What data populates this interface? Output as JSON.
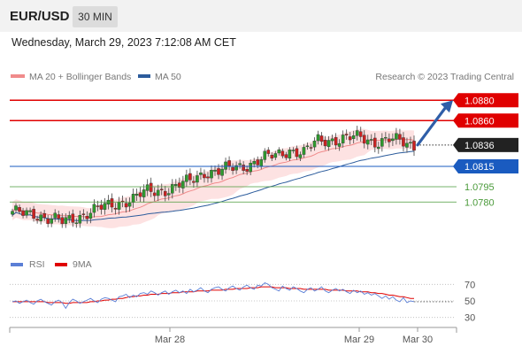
{
  "header": {
    "pair": "EUR/USD",
    "timeframe": "30 MIN",
    "timestamp": "Wednesday, March 29, 2023 7:12:08 AM CET"
  },
  "legend": {
    "ma20": "MA 20 + Bollinger Bands",
    "ma50": "MA 50",
    "credit": "Research © 2023 Trading Central",
    "rsi": "RSI",
    "ma9": "9MA"
  },
  "colors": {
    "ma20": "#f08b8b",
    "band": "#fde2e2",
    "ma50": "#2c5c9c",
    "resistance": "#e00000",
    "support": "#1a5bc0",
    "minor_support": "#4a9a3a",
    "candle_up": "#2e9a2e",
    "candle_down": "#cc2222",
    "current_bg": "#222222",
    "arrow": "#2f5ea8",
    "rsi": "#5b7fd6",
    "rsi_ma": "#e00000"
  },
  "chart_data": [
    {
      "type": "candlestick",
      "instrument": "EUR/USD",
      "timeframe": "30 MIN",
      "x_labels": [
        "Mar 28",
        "Mar 29",
        "Mar 30"
      ],
      "ylim": [
        1.0735,
        1.0895
      ],
      "current_price": "1.0836",
      "levels": [
        {
          "label": "1.0880",
          "value": 1.088,
          "kind": "resistance"
        },
        {
          "label": "1.0860",
          "value": 1.086,
          "kind": "resistance"
        },
        {
          "label": "1.0815",
          "value": 1.0815,
          "kind": "support"
        },
        {
          "label": "1.0795",
          "value": 1.0795,
          "kind": "minor_support"
        },
        {
          "label": "1.0780",
          "value": 1.078,
          "kind": "minor_support"
        }
      ],
      "target_arrow": {
        "from": 1.0836,
        "to": 1.088
      },
      "anchors": [
        {
          "i": 0,
          "p": 1.0768
        },
        {
          "i": 6,
          "p": 1.077
        },
        {
          "i": 10,
          "p": 1.0763
        },
        {
          "i": 14,
          "p": 1.076
        },
        {
          "i": 18,
          "p": 1.0766
        },
        {
          "i": 22,
          "p": 1.077
        },
        {
          "i": 26,
          "p": 1.0775
        },
        {
          "i": 30,
          "p": 1.078
        },
        {
          "i": 34,
          "p": 1.0783
        },
        {
          "i": 38,
          "p": 1.079
        },
        {
          "i": 42,
          "p": 1.0792
        },
        {
          "i": 46,
          "p": 1.0795
        },
        {
          "i": 50,
          "p": 1.08
        },
        {
          "i": 54,
          "p": 1.081
        },
        {
          "i": 58,
          "p": 1.081
        },
        {
          "i": 62,
          "p": 1.0813
        },
        {
          "i": 66,
          "p": 1.0817
        },
        {
          "i": 70,
          "p": 1.0822
        },
        {
          "i": 74,
          "p": 1.0825
        },
        {
          "i": 78,
          "p": 1.0832
        },
        {
          "i": 82,
          "p": 1.0828
        },
        {
          "i": 86,
          "p": 1.084
        },
        {
          "i": 90,
          "p": 1.0842
        },
        {
          "i": 94,
          "p": 1.0842
        },
        {
          "i": 98,
          "p": 1.0843
        },
        {
          "i": 102,
          "p": 1.084
        },
        {
          "i": 106,
          "p": 1.0841
        },
        {
          "i": 110,
          "p": 1.0838
        },
        {
          "i": 113,
          "p": 1.0836
        }
      ],
      "candle_count": 114
    },
    {
      "type": "line",
      "name": "RSI",
      "y_ticks": [
        70,
        50,
        30
      ],
      "ylim": [
        20,
        80
      ],
      "series": [
        {
          "name": "RSI",
          "values": [
            49,
            50,
            47,
            49,
            51,
            48,
            46,
            50,
            52,
            49,
            47,
            45,
            49,
            51,
            48,
            41,
            48,
            52,
            50,
            47,
            49,
            51,
            53,
            50,
            48,
            52,
            54,
            53,
            51,
            49,
            55,
            56,
            58,
            54,
            57,
            55,
            59,
            60,
            58,
            62,
            60,
            57,
            60,
            62,
            58,
            61,
            63,
            60,
            62,
            59,
            64,
            61,
            63,
            66,
            62,
            60,
            64,
            66,
            67,
            64,
            62,
            66,
            68,
            65,
            63,
            67,
            69,
            66,
            64,
            69,
            68,
            72,
            70,
            66,
            64,
            62,
            68,
            65,
            63,
            67,
            65,
            62,
            60,
            64,
            66,
            62,
            64,
            67,
            62,
            60,
            63,
            65,
            62,
            64,
            61,
            59,
            63,
            60,
            62,
            58,
            60,
            57,
            59,
            56,
            53,
            56,
            52,
            55,
            51,
            49,
            54,
            48,
            50,
            49
          ]
        },
        {
          "name": "9MA",
          "values": [
            49,
            49,
            49,
            49,
            49,
            49,
            49,
            49,
            49,
            49,
            48,
            48,
            48,
            48,
            48,
            47,
            47,
            48,
            48,
            48,
            48,
            48,
            49,
            49,
            50,
            50,
            51,
            51,
            52,
            52,
            53,
            53,
            54,
            55,
            55,
            56,
            56,
            57,
            57,
            58,
            58,
            58,
            59,
            59,
            59,
            60,
            60,
            60,
            61,
            61,
            61,
            61,
            62,
            62,
            62,
            62,
            63,
            63,
            63,
            63,
            64,
            64,
            64,
            65,
            65,
            65,
            65,
            66,
            66,
            66,
            67,
            67,
            67,
            67,
            66,
            66,
            66,
            66,
            65,
            65,
            65,
            65,
            64,
            64,
            64,
            64,
            64,
            64,
            64,
            63,
            63,
            63,
            63,
            63,
            62,
            62,
            62,
            62,
            61,
            61,
            61,
            60,
            60,
            59,
            59,
            58,
            57,
            57,
            56,
            55,
            55,
            54,
            53,
            53
          ]
        }
      ]
    }
  ]
}
